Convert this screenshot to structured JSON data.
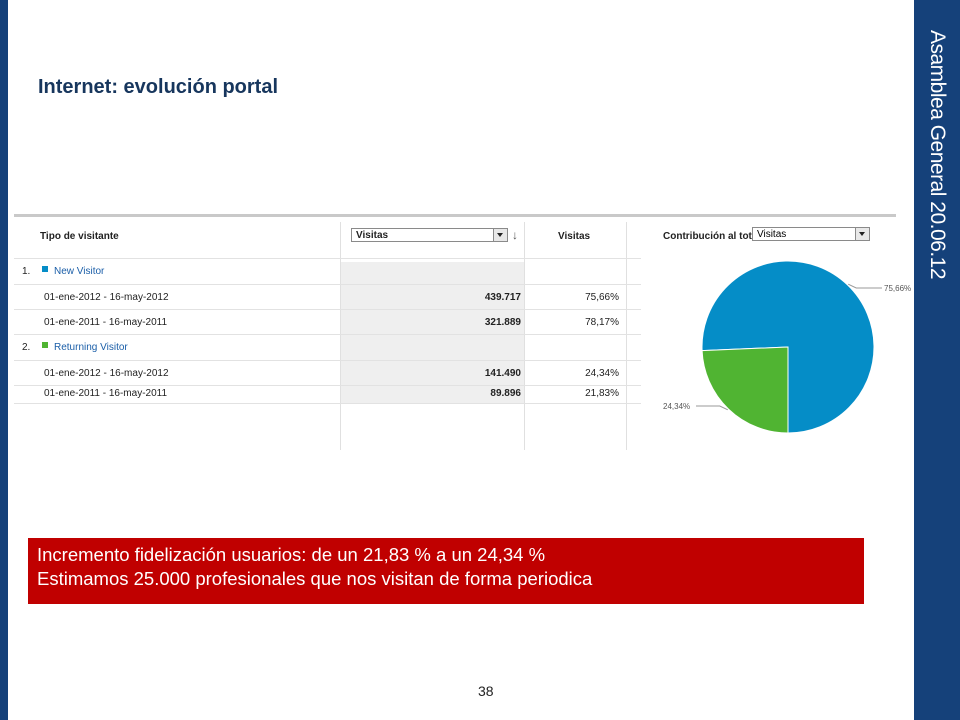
{
  "side_label": "Asamblea General  20.06.12",
  "title": "Internet: evolución portal",
  "report": {
    "headers": {
      "type": "Tipo de visitante",
      "metric_select": "Visitas",
      "metric": "Visitas",
      "contribution": "Contribución al total:",
      "contribution_select": "Visitas"
    },
    "sort_icon": "arrow-down-icon",
    "rows": [
      {
        "index": "1.",
        "label": "New Visitor",
        "color": "#058dc7"
      },
      {
        "label": "01-ene-2012 - 16-may-2012",
        "value": "439.717",
        "percent": "75,66%"
      },
      {
        "label": "01-ene-2011 - 16-may-2011",
        "value": "321.889",
        "percent": "78,17%"
      },
      {
        "index": "2.",
        "label": "Returning Visitor",
        "color": "#50b432"
      },
      {
        "label": "01-ene-2012 - 16-may-2012",
        "value": "141.490",
        "percent": "24,34%"
      },
      {
        "label": "01-ene-2011 - 16-may-2011",
        "value": "89.896",
        "percent": "21,83%"
      }
    ]
  },
  "chart_data": {
    "type": "pie",
    "slices": [
      {
        "label": "75,66%",
        "value": 75.66,
        "color": "#058dc7"
      },
      {
        "label": "24,34%",
        "value": 24.34,
        "color": "#50b432"
      }
    ]
  },
  "callout": {
    "line1": "Incremento fidelización usuarios: de un 21,83 % a un 24,34 %",
    "line2": "Estimamos 25.000  profesionales que nos visitan de forma periodica"
  },
  "page_number": "38"
}
